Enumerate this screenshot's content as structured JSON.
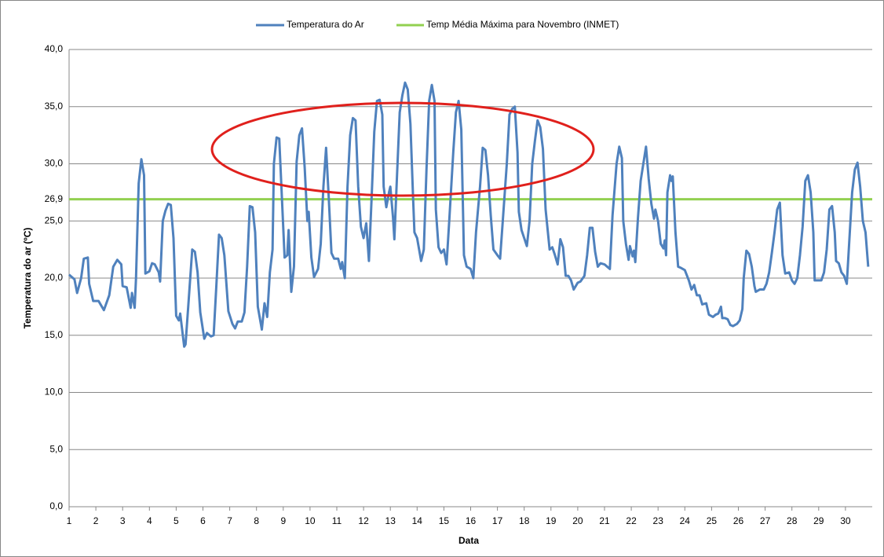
{
  "chart_data": {
    "type": "line",
    "x_label": "Data",
    "y_label": "Temperatura do ar (ºC)",
    "xlim": [
      1,
      31
    ],
    "xticks": [
      1,
      2,
      3,
      4,
      5,
      6,
      7,
      8,
      9,
      10,
      11,
      12,
      13,
      14,
      15,
      16,
      17,
      18,
      19,
      20,
      21,
      22,
      23,
      24,
      25,
      26,
      27,
      28,
      29,
      30
    ],
    "ylim": [
      0,
      40
    ],
    "yticks": [
      {
        "value": 0,
        "label": "0,0"
      },
      {
        "value": 5,
        "label": "5,0"
      },
      {
        "value": 10,
        "label": "10,0"
      },
      {
        "value": 15,
        "label": "15,0"
      },
      {
        "value": 20,
        "label": "20,0"
      },
      {
        "value": 25,
        "label": "25,0"
      },
      {
        "value": 30,
        "label": "30,0"
      },
      {
        "value": 35,
        "label": "35,0"
      },
      {
        "value": 40,
        "label": "40,0"
      }
    ],
    "grid": true,
    "hline": {
      "name": "Temp Média Máxima para Novembro (INMET)",
      "value": 26.9,
      "label": "26,9",
      "color": "#92d050"
    },
    "x": [
      1,
      1.2,
      1.3,
      1.45,
      1.55,
      1.7,
      1.75,
      1.9,
      2.1,
      2.3,
      2.5,
      2.65,
      2.8,
      2.95,
      3,
      3.15,
      3.3,
      3.35,
      3.45,
      3.5,
      3.6,
      3.7,
      3.8,
      3.85,
      4,
      4.1,
      4.2,
      4.35,
      4.4,
      4.5,
      4.6,
      4.7,
      4.8,
      4.9,
      5,
      5.1,
      5.15,
      5.3,
      5.35,
      5.45,
      5.6,
      5.7,
      5.8,
      5.9,
      6.05,
      6.15,
      6.3,
      6.4,
      6.5,
      6.6,
      6.7,
      6.8,
      6.95,
      7.1,
      7.2,
      7.3,
      7.45,
      7.55,
      7.65,
      7.75,
      7.85,
      7.95,
      8.05,
      8.2,
      8.3,
      8.4,
      8.5,
      8.6,
      8.65,
      8.75,
      8.85,
      8.95,
      9.05,
      9.15,
      9.2,
      9.3,
      9.4,
      9.5,
      9.6,
      9.7,
      9.8,
      9.9,
      9.95,
      10.05,
      10.15,
      10.3,
      10.4,
      10.5,
      10.6,
      10.7,
      10.8,
      10.9,
      11.05,
      11.15,
      11.2,
      11.3,
      11.4,
      11.5,
      11.6,
      11.7,
      11.8,
      11.9,
      12,
      12.1,
      12.2,
      12.3,
      12.4,
      12.5,
      12.6,
      12.7,
      12.75,
      12.85,
      12.95,
      13,
      13.1,
      13.15,
      13.25,
      13.35,
      13.45,
      13.55,
      13.65,
      13.75,
      13.85,
      13.9,
      14,
      14.15,
      14.25,
      14.35,
      14.45,
      14.55,
      14.65,
      14.7,
      14.8,
      14.9,
      15,
      15.1,
      15.2,
      15.35,
      15.45,
      15.55,
      15.65,
      15.75,
      15.85,
      16,
      16.1,
      16.2,
      16.35,
      16.45,
      16.55,
      16.65,
      16.75,
      16.85,
      17,
      17.1,
      17.2,
      17.35,
      17.45,
      17.55,
      17.65,
      17.75,
      17.8,
      17.9,
      18,
      18.1,
      18.2,
      18.3,
      18.4,
      18.5,
      18.6,
      18.7,
      18.8,
      18.95,
      19.05,
      19.15,
      19.25,
      19.35,
      19.45,
      19.55,
      19.65,
      19.75,
      19.85,
      20,
      20.1,
      20.25,
      20.35,
      20.45,
      20.55,
      20.65,
      20.75,
      20.85,
      21,
      21.1,
      21.2,
      21.3,
      21.45,
      21.55,
      21.65,
      21.7,
      21.8,
      21.9,
      21.95,
      22.05,
      22.1,
      22.15,
      22.25,
      22.35,
      22.45,
      22.55,
      22.65,
      22.75,
      22.85,
      22.9,
      23,
      23.1,
      23.2,
      23.25,
      23.3,
      23.35,
      23.45,
      23.5,
      23.55,
      23.65,
      23.75,
      23.85,
      24,
      24.15,
      24.25,
      24.35,
      24.45,
      24.55,
      24.65,
      24.8,
      24.9,
      25.05,
      25.15,
      25.25,
      25.35,
      25.4,
      25.5,
      25.6,
      25.7,
      25.8,
      25.95,
      26.05,
      26.15,
      26.2,
      26.3,
      26.4,
      26.5,
      26.6,
      26.65,
      26.8,
      26.95,
      27.05,
      27.15,
      27.25,
      27.35,
      27.45,
      27.55,
      27.65,
      27.75,
      27.9,
      28,
      28.1,
      28.2,
      28.3,
      28.4,
      28.5,
      28.6,
      28.7,
      28.8,
      28.85,
      29,
      29.1,
      29.2,
      29.3,
      29.4,
      29.5,
      29.6,
      29.65,
      29.75,
      29.85,
      29.95,
      30.05,
      30.15,
      30.25,
      30.35,
      30.45,
      30.55,
      30.65,
      30.75,
      30.85
    ],
    "series": [
      {
        "name": "Temperatura do Ar",
        "color": "#4f81bd",
        "values": [
          20.3,
          19.9,
          18.7,
          20,
          21.7,
          21.8,
          19.5,
          18,
          18,
          17.2,
          18.5,
          21,
          21.6,
          21.2,
          19.3,
          19.2,
          17.4,
          18.7,
          17.4,
          20,
          28.3,
          30.4,
          29,
          20.4,
          20.6,
          21.3,
          21.2,
          20.5,
          19.7,
          25,
          25.9,
          26.5,
          26.4,
          23.5,
          16.7,
          16.3,
          16.9,
          14,
          14.2,
          17.5,
          22.5,
          22.3,
          20.5,
          17,
          14.7,
          15.2,
          14.9,
          15,
          19.3,
          23.8,
          23.5,
          22,
          17.1,
          16,
          15.6,
          16.2,
          16.2,
          17,
          21,
          26.3,
          26.2,
          24,
          17.5,
          15.5,
          17.8,
          16.6,
          20.5,
          22.5,
          30,
          32.3,
          32.2,
          27,
          21.8,
          22,
          24.2,
          18.8,
          21,
          30.2,
          32.5,
          33.1,
          29.7,
          25,
          25.8,
          21.8,
          20.1,
          20.8,
          23,
          28,
          31.4,
          27,
          22.2,
          21.7,
          21.7,
          20.8,
          21.4,
          20,
          28,
          32.5,
          34,
          33.8,
          28,
          24.5,
          23.5,
          24.8,
          21.5,
          27,
          32.8,
          35.5,
          35.6,
          34.3,
          28,
          26.2,
          27.5,
          28,
          25.3,
          23.4,
          29,
          34.5,
          36,
          37.1,
          36.5,
          33.5,
          27,
          24,
          23.5,
          21.5,
          22.5,
          29.5,
          35.5,
          36.9,
          35.5,
          26,
          22.7,
          22.2,
          22.5,
          21.2,
          25,
          31,
          34.5,
          35.5,
          33,
          22,
          21,
          20.8,
          20,
          24,
          28,
          31.4,
          31.2,
          29,
          25.5,
          22.5,
          22,
          21.7,
          25,
          30,
          34.3,
          34.8,
          35,
          31,
          25.8,
          24.2,
          23.5,
          22.8,
          25,
          30,
          32,
          33.8,
          33.2,
          31.3,
          26,
          22.5,
          22.7,
          22,
          21.2,
          23.4,
          22.7,
          20.2,
          20.2,
          19.8,
          19,
          19.6,
          19.7,
          20.2,
          22,
          24.4,
          24.4,
          22.3,
          21,
          21.3,
          21.2,
          21,
          20.8,
          25.5,
          30,
          31.5,
          30.5,
          25,
          23,
          21.6,
          22.8,
          21.9,
          22.4,
          21.4,
          25.3,
          28.5,
          30,
          31.5,
          28.7,
          26.5,
          25.2,
          26,
          25,
          23,
          22.6,
          23.3,
          22,
          27.5,
          29,
          28.5,
          28.9,
          24,
          21,
          20.9,
          20.7,
          19.8,
          19,
          19.4,
          18.5,
          18.5,
          17.7,
          17.8,
          16.8,
          16.6,
          16.8,
          16.9,
          17.5,
          16.5,
          16.5,
          16.4,
          15.9,
          15.8,
          16,
          16.3,
          17.3,
          20,
          22.4,
          22.1,
          21,
          19.3,
          18.8,
          19,
          19,
          19.5,
          20.5,
          22.2,
          24,
          26,
          26.6,
          22,
          20.4,
          20.5,
          19.8,
          19.5,
          20,
          22,
          24.5,
          28.5,
          29,
          27.5,
          24,
          19.8,
          19.8,
          19.8,
          20.5,
          22.5,
          26,
          26.3,
          24,
          21.5,
          21.3,
          20.5,
          20.2,
          19.5,
          23.5,
          27.5,
          29.5,
          30.1,
          28,
          25,
          24,
          21
        ]
      }
    ]
  }
}
